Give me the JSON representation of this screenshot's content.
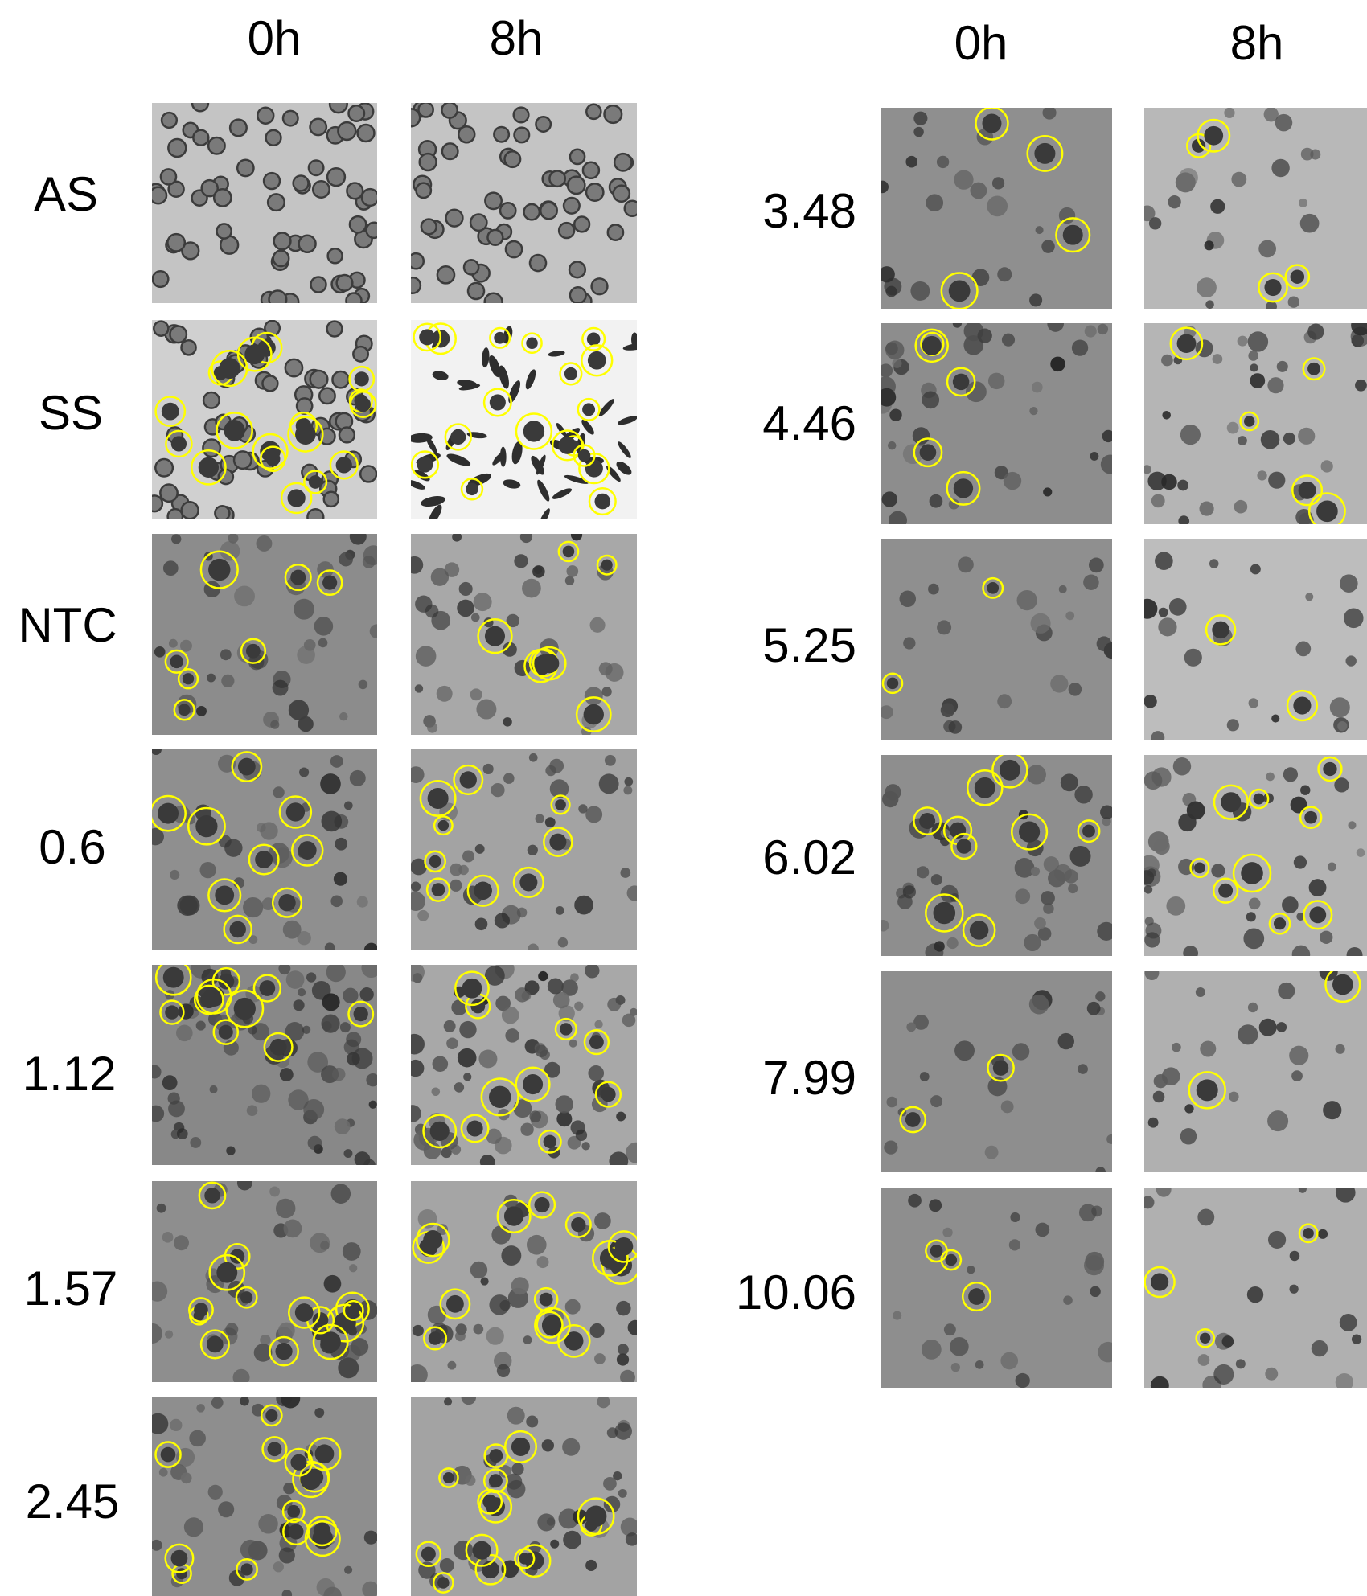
{
  "left_group": {
    "col_headers": [
      "0h",
      "8h"
    ],
    "row_labels": [
      "AS",
      "SS",
      "NTC",
      "0.6",
      "1.12",
      "1.57",
      "2.45"
    ]
  },
  "right_group": {
    "col_headers": [
      "0h",
      "8h"
    ],
    "row_labels": [
      "3.48",
      "4.46",
      "5.25",
      "6.02",
      "7.99",
      "10.06"
    ]
  },
  "colors": {
    "highlight_circle": "#ffff00",
    "panel_gray": "#8c8c8c",
    "panel_light": "#c8c8c8",
    "panel_white": "#f2f2f2",
    "cell_dark": "#3a3a3a"
  },
  "panels": {
    "left": [
      {
        "row": "AS",
        "t0": {
          "bg": "#c4c4c4",
          "cells": "rbc",
          "circles": 0
        },
        "t8": {
          "bg": "#c4c4c4",
          "cells": "rbc",
          "circles": 0
        }
      },
      {
        "row": "SS",
        "t0": {
          "bg": "#d0d0d0",
          "cells": "rbc",
          "circles": 18
        },
        "t8": {
          "bg": "#f2f2f2",
          "cells": "sickle",
          "circles": 18
        }
      },
      {
        "row": "NTC",
        "t0": {
          "bg": "#8c8c8c",
          "cells": "mixed",
          "circles": 7
        },
        "t8": {
          "bg": "#a8a8a8",
          "cells": "mixed",
          "circles": 7
        }
      },
      {
        "row": "0.6",
        "t0": {
          "bg": "#8f8f8f",
          "cells": "mixed",
          "circles": 9
        },
        "t8": {
          "bg": "#a3a3a3",
          "cells": "mixed",
          "circles": 9
        }
      },
      {
        "row": "1.12",
        "t0": {
          "bg": "#888888",
          "cells": "dense",
          "circles": 10
        },
        "t8": {
          "bg": "#a8a8a8",
          "cells": "dense",
          "circles": 10
        }
      },
      {
        "row": "1.57",
        "t0": {
          "bg": "#8e8e8e",
          "cells": "mixed",
          "circles": 14
        },
        "t8": {
          "bg": "#a5a5a5",
          "cells": "mixed",
          "circles": 14
        }
      },
      {
        "row": "2.45",
        "t0": {
          "bg": "#8e8e8e",
          "cells": "mixed",
          "circles": 14
        },
        "t8": {
          "bg": "#a3a3a3",
          "cells": "mixed",
          "circles": 14
        }
      }
    ],
    "right": [
      {
        "row": "3.48",
        "t0": {
          "bg": "#8f8f8f",
          "cells": "sparse",
          "circles": 4
        },
        "t8": {
          "bg": "#b8b8b8",
          "cells": "sparse",
          "circles": 4
        }
      },
      {
        "row": "4.46",
        "t0": {
          "bg": "#8d8d8d",
          "cells": "mixed",
          "circles": 5
        },
        "t8": {
          "bg": "#b5b5b5",
          "cells": "mixed",
          "circles": 5
        }
      },
      {
        "row": "5.25",
        "t0": {
          "bg": "#8f8f8f",
          "cells": "sparse",
          "circles": 2
        },
        "t8": {
          "bg": "#bdbdbd",
          "cells": "sparse",
          "circles": 2
        }
      },
      {
        "row": "6.02",
        "t0": {
          "bg": "#8e8e8e",
          "cells": "mixed",
          "circles": 9
        },
        "t8": {
          "bg": "#b3b3b3",
          "cells": "mixed",
          "circles": 9
        }
      },
      {
        "row": "7.99",
        "t0": {
          "bg": "#8e8e8e",
          "cells": "sparse",
          "circles": 2
        },
        "t8": {
          "bg": "#b0b0b0",
          "cells": "sparse",
          "circles": 2
        }
      },
      {
        "row": "10.06",
        "t0": {
          "bg": "#8e8e8e",
          "cells": "sparse",
          "circles": 3
        },
        "t8": {
          "bg": "#b0b0b0",
          "cells": "sparse",
          "circles": 3
        }
      }
    ]
  }
}
